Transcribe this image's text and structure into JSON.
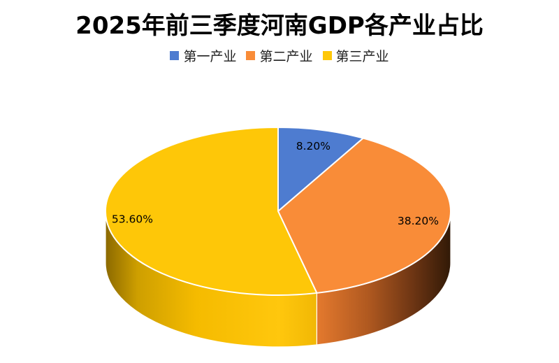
{
  "page": {
    "background": "#FFFFFF"
  },
  "chart_data": {
    "type": "pie",
    "style": "3d",
    "title": "2025年前三季度河南GDP各产业占比",
    "legend_position": "top",
    "start_angle_deg": 0,
    "clockwise": true,
    "categories": [
      "第一产业",
      "第二产业",
      "第三产业"
    ],
    "values": [
      8.2,
      38.2,
      53.6
    ],
    "labels": [
      "8.20%",
      "38.20%",
      "53.60%"
    ],
    "colors": [
      "#4E7CD0",
      "#F98C38",
      "#FEC708"
    ],
    "label_color": "#000000",
    "slice_border_color": "#FFFFFF",
    "title_color": "#000000",
    "legend_text_color": "#1f1f1f",
    "wall_shading": {
      "second_industry": [
        [
          "0",
          "#E57A2E"
        ],
        [
          "0.38",
          "#B05920"
        ],
        [
          "0.72",
          "#6B3413"
        ],
        [
          "1",
          "#2E1806"
        ]
      ],
      "third_industry": [
        [
          "0",
          "#8A6800"
        ],
        [
          "0.15",
          "#CE9F00"
        ],
        [
          "0.42",
          "#F5BB00"
        ],
        [
          "0.8",
          "#FFC70D"
        ],
        [
          "1",
          "#EFB503"
        ]
      ]
    }
  }
}
